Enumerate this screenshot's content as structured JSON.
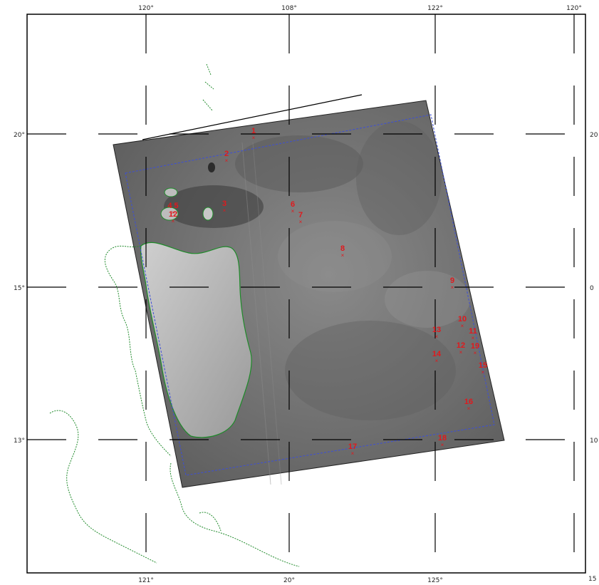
{
  "map": {
    "top_ticks": [
      "120°",
      "108°",
      "122°",
      "120°"
    ],
    "bottom_ticks": [
      "121°",
      "20°",
      "125°"
    ],
    "left_ticks": [
      "20°",
      "15°",
      "13°"
    ],
    "right_ticks": [
      "20",
      "0",
      "10",
      "15"
    ]
  },
  "stations": [
    {
      "label": "1"
    },
    {
      "label": "2"
    },
    {
      "label": "3"
    },
    {
      "label": "4 5"
    },
    {
      "label": "12"
    },
    {
      "label": "6"
    },
    {
      "label": "7"
    },
    {
      "label": "8"
    },
    {
      "label": "9"
    },
    {
      "label": "10"
    },
    {
      "label": "11"
    },
    {
      "label": "12"
    },
    {
      "label": "13"
    },
    {
      "label": "14"
    },
    {
      "label": "15"
    },
    {
      "label": "16"
    },
    {
      "label": "17"
    },
    {
      "label": "18"
    },
    {
      "label": "19"
    }
  ],
  "colors": {
    "frame": "#000000",
    "coast": "#1f8a2a",
    "station": "#e0191d",
    "footprint": "#3d4fd6",
    "scene": "#6f6f6f"
  }
}
